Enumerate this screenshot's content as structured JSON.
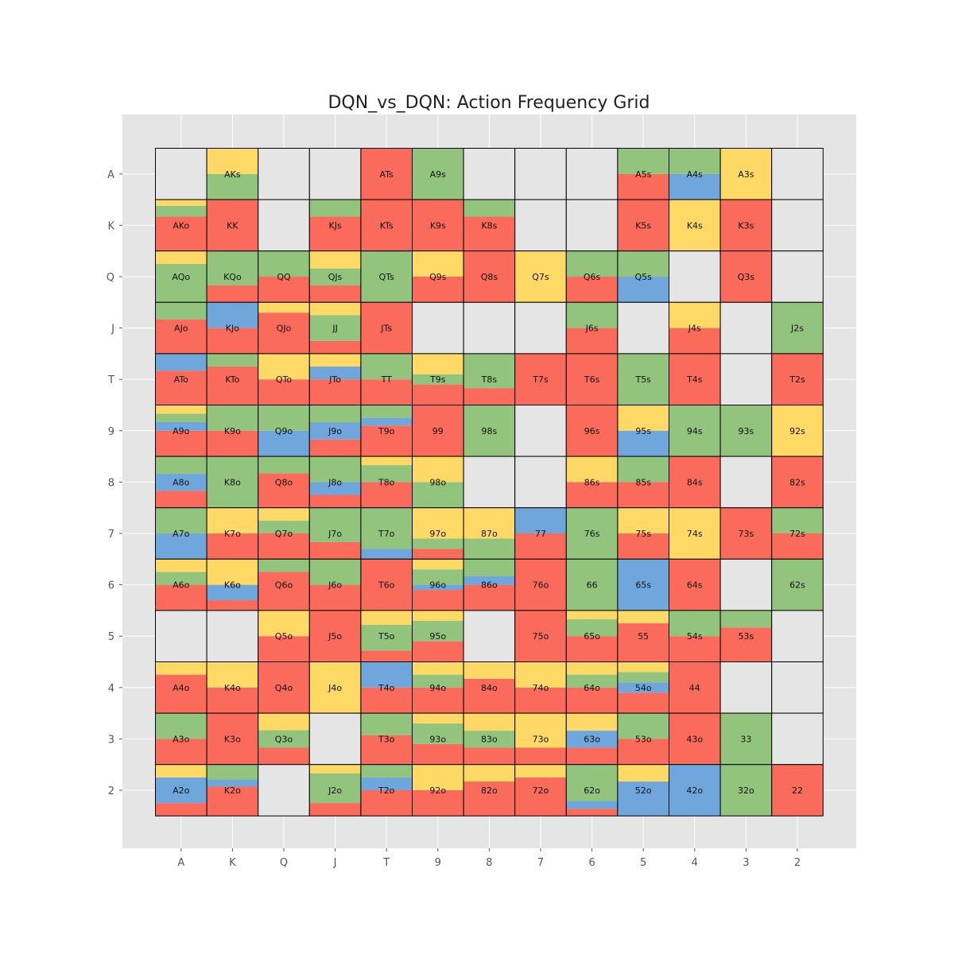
{
  "chart_data": {
    "type": "heatmap",
    "title": "DQN_vs_DQN: Action Frequency Grid",
    "xlabel": "",
    "ylabel": "",
    "x_ticks": [
      "A",
      "K",
      "Q",
      "J",
      "T",
      "9",
      "8",
      "7",
      "6",
      "5",
      "4",
      "3",
      "2"
    ],
    "y_ticks": [
      "A",
      "K",
      "Q",
      "J",
      "T",
      "9",
      "8",
      "7",
      "6",
      "5",
      "4",
      "3",
      "2"
    ],
    "action_colors": {
      "red": "#fb6b5b",
      "blue": "#6fa7dc",
      "green": "#93c47d",
      "yellow": "#ffd966",
      "empty": "#e5e5e5"
    },
    "stack_order": [
      "red",
      "blue",
      "green",
      "yellow"
    ],
    "background_color": "#e5e5e5",
    "rows": [
      [
        {
          "label": ""
        },
        {
          "label": "AKs",
          "green": 0.5,
          "yellow": 0.5
        },
        {
          "label": ""
        },
        {
          "label": ""
        },
        {
          "label": "ATs",
          "red": 1
        },
        {
          "label": "A9s",
          "green": 1
        },
        {
          "label": ""
        },
        {
          "label": ""
        },
        {
          "label": ""
        },
        {
          "label": "A5s",
          "red": 0.5,
          "green": 0.5
        },
        {
          "label": "A4s",
          "blue": 0.5,
          "green": 0.5
        },
        {
          "label": "A3s",
          "yellow": 1
        },
        {
          "label": ""
        }
      ],
      [
        {
          "label": "AKo",
          "red": 0.67,
          "green": 0.21,
          "yellow": 0.12
        },
        {
          "label": "KK",
          "red": 1
        },
        {
          "label": ""
        },
        {
          "label": "KJs",
          "red": 0.67,
          "green": 0.33
        },
        {
          "label": "KTs",
          "red": 1
        },
        {
          "label": "K9s",
          "red": 1
        },
        {
          "label": "K8s",
          "red": 0.67,
          "green": 0.33
        },
        {
          "label": ""
        },
        {
          "label": ""
        },
        {
          "label": "K5s",
          "red": 1
        },
        {
          "label": "K4s",
          "yellow": 1
        },
        {
          "label": "K3s",
          "red": 1
        },
        {
          "label": ""
        }
      ],
      [
        {
          "label": "AQo",
          "green": 0.75,
          "yellow": 0.25
        },
        {
          "label": "KQo",
          "red": 0.33,
          "green": 0.67
        },
        {
          "label": "QQ",
          "red": 0.5,
          "green": 0.5
        },
        {
          "label": "QJs",
          "red": 0.33,
          "green": 0.33,
          "yellow": 0.34
        },
        {
          "label": "QTs",
          "green": 1
        },
        {
          "label": "Q9s",
          "red": 0.5,
          "yellow": 0.5
        },
        {
          "label": "Q8s",
          "red": 1
        },
        {
          "label": "Q7s",
          "yellow": 1
        },
        {
          "label": "Q6s",
          "red": 0.5,
          "green": 0.5
        },
        {
          "label": "Q5s",
          "blue": 0.5,
          "green": 0.5
        },
        {
          "label": ""
        },
        {
          "label": "Q3s",
          "red": 1
        },
        {
          "label": ""
        }
      ],
      [
        {
          "label": "AJo",
          "red": 0.67,
          "green": 0.33
        },
        {
          "label": "KJo",
          "red": 0.5,
          "blue": 0.5
        },
        {
          "label": "QJo",
          "red": 0.8,
          "yellow": 0.2
        },
        {
          "label": "JJ",
          "red": 0.25,
          "green": 0.5,
          "yellow": 0.25
        },
        {
          "label": "JTs",
          "red": 1
        },
        {
          "label": ""
        },
        {
          "label": ""
        },
        {
          "label": ""
        },
        {
          "label": "J6s",
          "red": 0.5,
          "green": 0.5
        },
        {
          "label": ""
        },
        {
          "label": "J4s",
          "red": 0.5,
          "yellow": 0.5
        },
        {
          "label": ""
        },
        {
          "label": "J2s",
          "green": 1
        }
      ],
      [
        {
          "label": "ATo",
          "red": 0.67,
          "blue": 0.33
        },
        {
          "label": "KTo",
          "red": 0.75,
          "green": 0.25
        },
        {
          "label": "QTo",
          "red": 0.5,
          "yellow": 0.5
        },
        {
          "label": "JTo",
          "red": 0.5,
          "blue": 0.25,
          "yellow": 0.25
        },
        {
          "label": "TT",
          "red": 0.5,
          "green": 0.5
        },
        {
          "label": "T9s",
          "red": 0.4,
          "green": 0.2,
          "yellow": 0.4
        },
        {
          "label": "T8s",
          "red": 0.33,
          "green": 0.67
        },
        {
          "label": "T7s",
          "red": 1
        },
        {
          "label": "T6s",
          "red": 1
        },
        {
          "label": "T5s",
          "green": 1
        },
        {
          "label": "T4s",
          "red": 1
        },
        {
          "label": ""
        },
        {
          "label": "T2s",
          "red": 1
        }
      ],
      [
        {
          "label": "A9o",
          "red": 0.5,
          "blue": 0.17,
          "green": 0.16,
          "yellow": 0.17
        },
        {
          "label": "K9o",
          "red": 0.5,
          "green": 0.5
        },
        {
          "label": "Q9o",
          "blue": 0.5,
          "green": 0.5
        },
        {
          "label": "J9o",
          "red": 0.33,
          "blue": 0.33,
          "green": 0.34
        },
        {
          "label": "T9o",
          "red": 0.6,
          "blue": 0.15,
          "green": 0.25
        },
        {
          "label": "99",
          "red": 1
        },
        {
          "label": "98s",
          "green": 1
        },
        {
          "label": ""
        },
        {
          "label": "96s",
          "red": 1
        },
        {
          "label": "95s",
          "blue": 0.5,
          "yellow": 0.5
        },
        {
          "label": "94s",
          "green": 1
        },
        {
          "label": "93s",
          "green": 1
        },
        {
          "label": "92s",
          "yellow": 1
        }
      ],
      [
        {
          "label": "A8o",
          "red": 0.33,
          "blue": 0.33,
          "green": 0.34
        },
        {
          "label": "K8o",
          "green": 1
        },
        {
          "label": "Q8o",
          "red": 0.67,
          "green": 0.33
        },
        {
          "label": "J8o",
          "red": 0.25,
          "blue": 0.25,
          "green": 0.5
        },
        {
          "label": "T8o",
          "red": 0.5,
          "green": 0.33,
          "yellow": 0.17
        },
        {
          "label": "98o",
          "green": 0.5,
          "yellow": 0.5
        },
        {
          "label": ""
        },
        {
          "label": ""
        },
        {
          "label": "86s",
          "red": 0.5,
          "yellow": 0.5
        },
        {
          "label": "85s",
          "red": 0.5,
          "green": 0.5
        },
        {
          "label": "84s",
          "red": 1
        },
        {
          "label": ""
        },
        {
          "label": "82s",
          "red": 1
        }
      ],
      [
        {
          "label": "A7o",
          "blue": 0.5,
          "green": 0.5
        },
        {
          "label": "K7o",
          "red": 0.5,
          "yellow": 0.5
        },
        {
          "label": "Q7o",
          "red": 0.5,
          "green": 0.25,
          "yellow": 0.25
        },
        {
          "label": "J7o",
          "red": 0.33,
          "green": 0.67
        },
        {
          "label": "T7o",
          "blue": 0.2,
          "green": 0.8
        },
        {
          "label": "97o",
          "red": 0.2,
          "green": 0.2,
          "yellow": 0.6
        },
        {
          "label": "87o",
          "green": 0.4,
          "yellow": 0.6
        },
        {
          "label": "77",
          "red": 0.5,
          "blue": 0.5
        },
        {
          "label": "76s",
          "green": 1
        },
        {
          "label": "75s",
          "red": 0.5,
          "yellow": 0.5
        },
        {
          "label": "74s",
          "yellow": 1
        },
        {
          "label": "73s",
          "red": 1
        },
        {
          "label": "72s",
          "red": 0.5,
          "green": 0.5
        }
      ],
      [
        {
          "label": "A6o",
          "red": 0.5,
          "green": 0.25,
          "yellow": 0.25
        },
        {
          "label": "K6o",
          "red": 0.2,
          "blue": 0.3,
          "yellow": 0.5
        },
        {
          "label": "Q6o",
          "red": 0.75,
          "green": 0.25
        },
        {
          "label": "J6o",
          "red": 0.5,
          "green": 0.5
        },
        {
          "label": "T6o",
          "red": 1
        },
        {
          "label": "96o",
          "red": 0.4,
          "blue": 0.1,
          "green": 0.3,
          "yellow": 0.2
        },
        {
          "label": "86o",
          "red": 0.5,
          "blue": 0.17,
          "green": 0.33
        },
        {
          "label": "76o",
          "red": 1
        },
        {
          "label": "66",
          "green": 1
        },
        {
          "label": "65s",
          "blue": 1
        },
        {
          "label": "64s",
          "red": 1
        },
        {
          "label": ""
        },
        {
          "label": "62s",
          "green": 1
        }
      ],
      [
        {
          "label": ""
        },
        {
          "label": ""
        },
        {
          "label": "Q5o",
          "red": 0.5,
          "yellow": 0.5
        },
        {
          "label": "J5o",
          "red": 1
        },
        {
          "label": "T5o",
          "red": 0.22,
          "green": 0.5,
          "yellow": 0.28
        },
        {
          "label": "95o",
          "red": 0.4,
          "green": 0.4,
          "yellow": 0.2
        },
        {
          "label": ""
        },
        {
          "label": "75o",
          "red": 1
        },
        {
          "label": "65o",
          "red": 0.5,
          "green": 0.33,
          "yellow": 0.17
        },
        {
          "label": "55",
          "red": 0.75,
          "yellow": 0.25
        },
        {
          "label": "54s",
          "red": 0.5,
          "green": 0.5
        },
        {
          "label": "53s",
          "red": 0.67,
          "green": 0.33
        },
        {
          "label": ""
        }
      ],
      [
        {
          "label": "A4o",
          "red": 0.75,
          "yellow": 0.25
        },
        {
          "label": "K4o",
          "red": 0.5,
          "yellow": 0.5
        },
        {
          "label": "Q4o",
          "red": 1
        },
        {
          "label": "J4o",
          "yellow": 1
        },
        {
          "label": "T4o",
          "red": 0.5,
          "blue": 0.5
        },
        {
          "label": "94o",
          "red": 0.5,
          "green": 0.25,
          "yellow": 0.25
        },
        {
          "label": "84o",
          "red": 0.67,
          "yellow": 0.33
        },
        {
          "label": "74o",
          "red": 0.5,
          "yellow": 0.5
        },
        {
          "label": "64o",
          "red": 0.5,
          "green": 0.25,
          "yellow": 0.25
        },
        {
          "label": "54o",
          "red": 0.4,
          "blue": 0.2,
          "green": 0.2,
          "yellow": 0.2
        },
        {
          "label": "44",
          "red": 1
        },
        {
          "label": ""
        },
        {
          "label": ""
        }
      ],
      [
        {
          "label": "A3o",
          "red": 0.5,
          "green": 0.5
        },
        {
          "label": "K3o",
          "red": 1
        },
        {
          "label": "Q3o",
          "red": 0.33,
          "green": 0.34,
          "yellow": 0.33
        },
        {
          "label": ""
        },
        {
          "label": "T3o",
          "red": 0.57,
          "green": 0.43
        },
        {
          "label": "93o",
          "red": 0.4,
          "green": 0.4,
          "yellow": 0.2
        },
        {
          "label": "83o",
          "red": 0.33,
          "green": 0.33,
          "yellow": 0.34
        },
        {
          "label": "73o",
          "red": 0.33,
          "yellow": 0.67
        },
        {
          "label": "63o",
          "red": 0.33,
          "blue": 0.33,
          "yellow": 0.34
        },
        {
          "label": "53o",
          "red": 0.5,
          "green": 0.5
        },
        {
          "label": "43o",
          "red": 1
        },
        {
          "label": "33",
          "green": 1
        },
        {
          "label": ""
        }
      ],
      [
        {
          "label": "A2o",
          "red": 0.25,
          "blue": 0.5,
          "yellow": 0.25
        },
        {
          "label": "K2o",
          "red": 0.57,
          "blue": 0.14,
          "green": 0.29
        },
        {
          "label": ""
        },
        {
          "label": "J2o",
          "red": 0.25,
          "green": 0.58,
          "yellow": 0.17
        },
        {
          "label": "T2o",
          "red": 0.5,
          "blue": 0.25,
          "green": 0.25
        },
        {
          "label": "92o",
          "red": 0.5,
          "yellow": 0.5
        },
        {
          "label": "82o",
          "red": 0.67,
          "yellow": 0.33
        },
        {
          "label": "72o",
          "red": 0.75,
          "yellow": 0.25
        },
        {
          "label": "62o",
          "red": 0.14,
          "blue": 0.15,
          "green": 0.71
        },
        {
          "label": "52o",
          "blue": 0.67,
          "yellow": 0.33
        },
        {
          "label": "42o",
          "blue": 1
        },
        {
          "label": "32o",
          "green": 1
        },
        {
          "label": "22",
          "red": 1
        }
      ]
    ]
  }
}
